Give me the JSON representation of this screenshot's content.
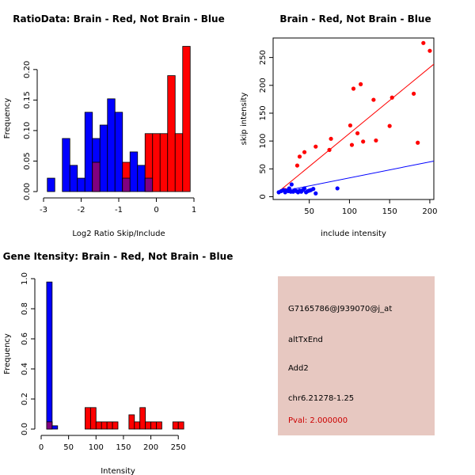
{
  "chart_data": [
    {
      "type": "histogram",
      "title": "RatioData: Brain - Red, Not Brain - Blue",
      "xlabel": "Log2 Ratio Skip/Include",
      "ylabel": "Frequency",
      "xlim": [
        -3,
        1
      ],
      "ylim": [
        0,
        0.24
      ],
      "xticks": [
        -3,
        -2,
        -1,
        0,
        1
      ],
      "yticks": [
        0.0,
        0.05,
        0.1,
        0.15,
        0.2
      ],
      "ytick_labels": [
        "0.00",
        "0.05",
        "0.10",
        "0.15",
        "0.20"
      ],
      "bin_edges": [
        -2.9,
        -2.7,
        -2.5,
        -2.3,
        -2.1,
        -1.9,
        -1.7,
        -1.5,
        -1.3,
        -1.1,
        -0.9,
        -0.7,
        -0.5,
        -0.3,
        -0.1,
        0.1,
        0.3,
        0.5,
        0.7,
        0.9
      ],
      "series": [
        {
          "name": "Not Brain",
          "color": "#0000ff",
          "values": [
            0.022,
            0,
            0.087,
            0.043,
            0.022,
            0.13,
            0.087,
            0.109,
            0.152,
            0.13,
            0.022,
            0.065,
            0.043,
            0.022,
            0,
            0,
            0,
            0,
            0
          ]
        },
        {
          "name": "Brain",
          "color": "#ff0000",
          "values": [
            0,
            0,
            0,
            0,
            0,
            0,
            0.048,
            0,
            0,
            0,
            0.048,
            0,
            0,
            0.095,
            0.095,
            0.095,
            0.19,
            0.095,
            0.238
          ]
        }
      ]
    },
    {
      "type": "scatter",
      "title": "Brain - Red, Not Brain - Blue",
      "xlabel": "include intensity",
      "ylabel": "skip intensity",
      "xlim": [
        5,
        205
      ],
      "ylim": [
        -5,
        285
      ],
      "xticks": [
        50,
        100,
        150,
        200
      ],
      "yticks": [
        0,
        50,
        100,
        150,
        200,
        250
      ],
      "series": [
        {
          "name": "Brain",
          "color": "#ff0000",
          "points": [
            [
              20,
              12
            ],
            [
              35,
              56
            ],
            [
              38,
              72
            ],
            [
              44,
              80
            ],
            [
              58,
              90
            ],
            [
              75,
              84
            ],
            [
              77,
              104
            ],
            [
              101,
              128
            ],
            [
              103,
              93
            ],
            [
              105,
              194
            ],
            [
              110,
              114
            ],
            [
              114,
              202
            ],
            [
              117,
              99
            ],
            [
              130,
              174
            ],
            [
              133,
              101
            ],
            [
              150,
              127
            ],
            [
              153,
              178
            ],
            [
              180,
              185
            ],
            [
              185,
              97
            ],
            [
              192,
              276
            ],
            [
              200,
              262
            ]
          ],
          "fit_line": [
            [
              10,
              7
            ],
            [
              205,
              238
            ]
          ]
        },
        {
          "name": "Not Brain",
          "color": "#0000ff",
          "points": [
            [
              12,
              8
            ],
            [
              15,
              10
            ],
            [
              18,
              12
            ],
            [
              20,
              8
            ],
            [
              22,
              11
            ],
            [
              24,
              10
            ],
            [
              25,
              15
            ],
            [
              27,
              9
            ],
            [
              28,
              22
            ],
            [
              30,
              9
            ],
            [
              32,
              12
            ],
            [
              34,
              10
            ],
            [
              36,
              8
            ],
            [
              38,
              11
            ],
            [
              40,
              9
            ],
            [
              42,
              12
            ],
            [
              44,
              15
            ],
            [
              46,
              8
            ],
            [
              48,
              10
            ],
            [
              50,
              11
            ],
            [
              52,
              12
            ],
            [
              55,
              14
            ],
            [
              58,
              6
            ],
            [
              85,
              15
            ]
          ],
          "fit_line": [
            [
              10,
              8
            ],
            [
              205,
              64
            ]
          ]
        }
      ]
    },
    {
      "type": "histogram",
      "title": "Gene Itensity: Brain - Red, Not Brain - Blue",
      "xlabel": "Intensity",
      "ylabel": "Frequency",
      "xlim": [
        0,
        280
      ],
      "ylim": [
        0,
        1.0
      ],
      "xticks": [
        0,
        50,
        100,
        150,
        200,
        250
      ],
      "yticks": [
        0.0,
        0.2,
        0.4,
        0.6,
        0.8,
        1.0
      ],
      "ytick_labels": [
        "0.0",
        "0.2",
        "0.4",
        "0.6",
        "0.8",
        "1.0"
      ],
      "bin_edges": [
        10,
        20,
        30,
        40,
        50,
        60,
        70,
        80,
        90,
        100,
        110,
        120,
        130,
        140,
        150,
        160,
        170,
        180,
        190,
        200,
        210,
        220,
        230,
        240,
        250,
        260,
        270,
        280
      ],
      "series": [
        {
          "name": "Not Brain",
          "color": "#0000ff",
          "values": [
            0.978,
            0.022,
            0,
            0,
            0,
            0,
            0,
            0,
            0,
            0,
            0,
            0,
            0,
            0,
            0,
            0,
            0,
            0,
            0,
            0,
            0,
            0,
            0,
            0,
            0,
            0,
            0
          ]
        },
        {
          "name": "Brain",
          "color": "#ff0000",
          "values": [
            0.048,
            0,
            0,
            0,
            0,
            0,
            0,
            0.143,
            0.143,
            0.048,
            0.048,
            0.048,
            0.048,
            0,
            0,
            0.095,
            0.048,
            0.143,
            0.048,
            0.048,
            0.048,
            0,
            0,
            0.048,
            0.048,
            0,
            0
          ]
        }
      ]
    }
  ],
  "info": {
    "probe_id": "G7165786@J939070@j_at",
    "event_type": "altTxEnd",
    "gene": "Add2",
    "location": "chr6.21278-1.25",
    "pval": "Pval: 2.000000"
  }
}
